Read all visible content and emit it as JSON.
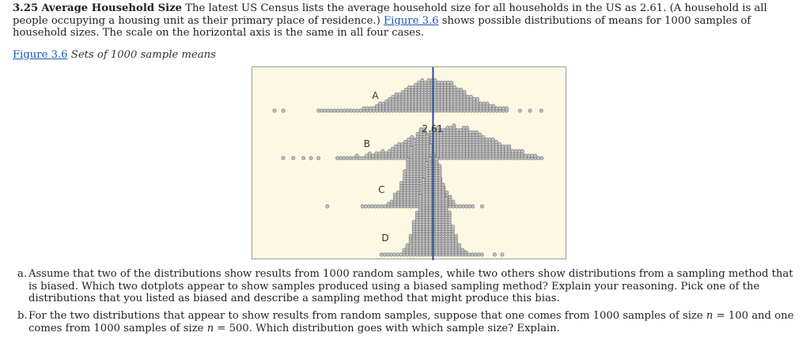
{
  "problem": {
    "number": "3.25",
    "title": "Average Household Size",
    "text1": "The latest US Census lists the average household size for all households in the US as 2.61. (A household is all people occupying a housing unit as their primary place of residence.)",
    "link": "Figure 3.6",
    "text2": "shows possible distributions of means for 1000 samples of household sizes. The scale on the horizontal axis is the same in all four cases."
  },
  "figure": {
    "caption_link": "Figure 3.6",
    "caption_text": "Sets of 1000 sample means"
  },
  "chart_data": {
    "type": "dotplot",
    "title": "",
    "reference_line": {
      "value": 2.61,
      "label": "2.61"
    },
    "series": [
      {
        "name": "A",
        "center": 2.61,
        "spread": "moderate",
        "centered_on_reference": true
      },
      {
        "name": "B",
        "center": 2.75,
        "spread": "wide",
        "centered_on_reference": false
      },
      {
        "name": "C",
        "center": 2.52,
        "spread": "narrow",
        "centered_on_reference": false
      },
      {
        "name": "D",
        "center": 2.61,
        "spread": "narrowest",
        "centered_on_reference": true
      }
    ],
    "colors": {
      "dots": "#7a7a7a",
      "reference_line": "#2b4a9b",
      "background": "#fdf8e4"
    }
  },
  "questions": {
    "a_letter": "a.",
    "a_text": "Assume that two of the distributions show results from 1000 random samples, while two others show distributions from a sampling method that is biased. Which two dotplots appear to show samples produced using a biased sampling method? Explain your reasoning. Pick one of the distributions that you listed as biased and describe a sampling method that might produce this bias.",
    "b_letter": "b.",
    "b_text_1": "For the two distributions that appear to show results from random samples, suppose that one comes from 1000 samples of size",
    "b_n": "n",
    "b_eq1": "= 100 and one comes from 1000 samples of size",
    "b_eq2": "= 500. Which distribution goes with which sample size? Explain."
  }
}
